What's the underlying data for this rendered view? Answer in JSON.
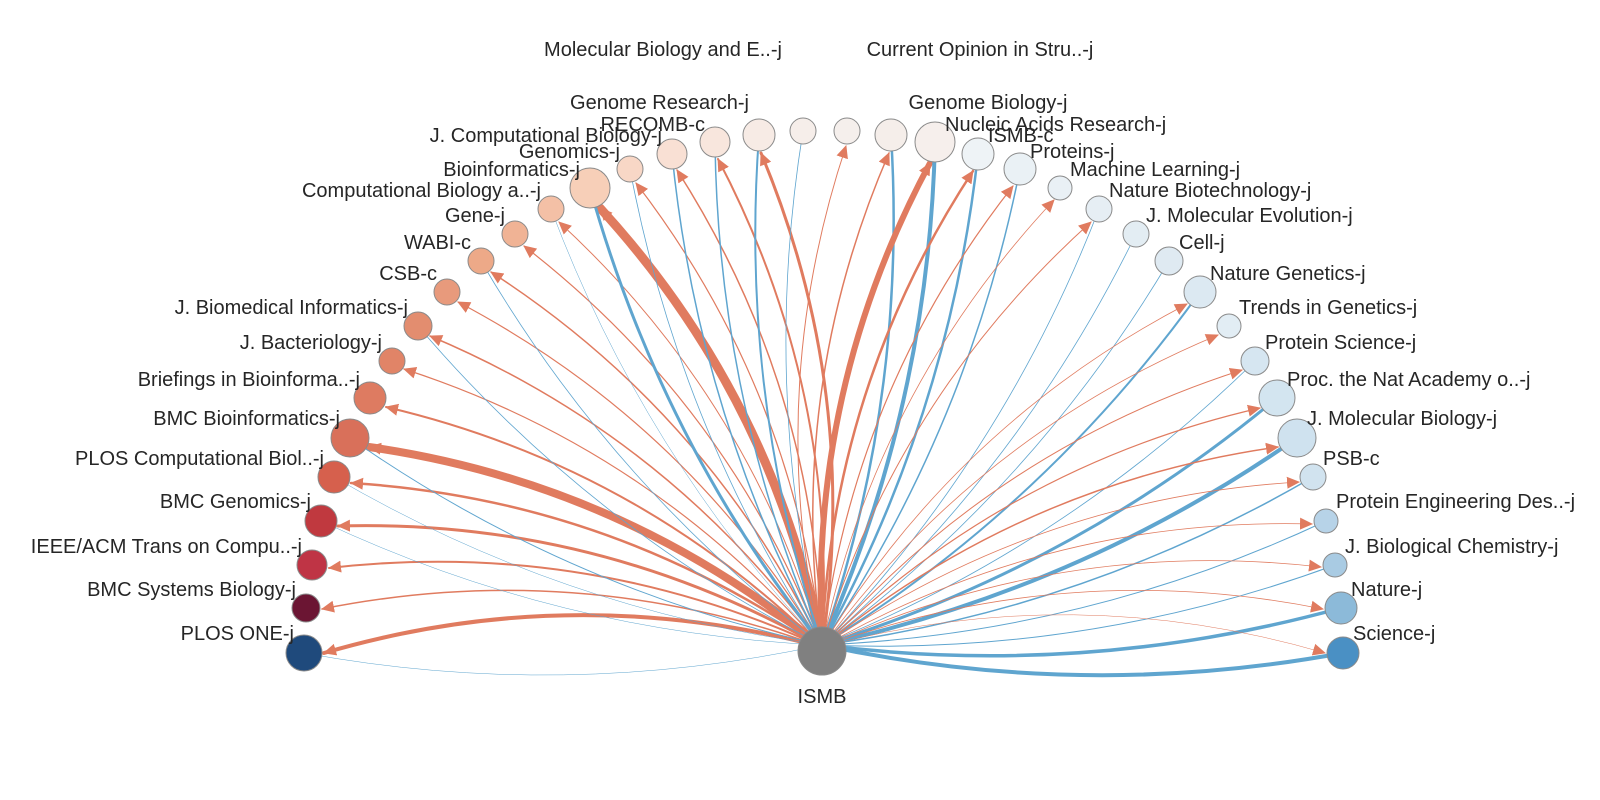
{
  "center": {
    "label": "ISMB",
    "color": "#808080"
  },
  "colors": {
    "cites_out": "#e07b5f",
    "cited_by": "#5fa5cf",
    "node_stroke": "#8a8a8a",
    "text": "#262626"
  },
  "venues": [
    {
      "label": "PLOS ONE-j",
      "color": "#1f4a7c",
      "out": 4,
      "in": 0.5
    },
    {
      "label": "BMC Systems Biology-j",
      "color": "#6b1533",
      "out": 1.5,
      "in": 0
    },
    {
      "label": "IEEE/ACM Trans on Compu..-j",
      "color": "#bf3445",
      "out": 2,
      "in": 0
    },
    {
      "label": "BMC Genomics-j",
      "color": "#c0393f",
      "out": 3,
      "in": 0.5
    },
    {
      "label": "PLOS Computational Biol..-j",
      "color": "#d6604d",
      "out": 2.5,
      "in": 0.5
    },
    {
      "label": "BMC Bioinformatics-j",
      "color": "#d9705a",
      "out": 8,
      "in": 1
    },
    {
      "label": "Briefings in Bioinforma..-j",
      "color": "#de7b61",
      "out": 2,
      "in": 0
    },
    {
      "label": "J. Bacteriology-j",
      "color": "#e18467",
      "out": 1.2,
      "in": 0
    },
    {
      "label": "J. Biomedical Informatics-j",
      "color": "#e38d6f",
      "out": 1.5,
      "in": 0.8
    },
    {
      "label": "CSB-c",
      "color": "#e89a7c",
      "out": 1.2,
      "in": 0
    },
    {
      "label": "WABI-c",
      "color": "#eda988",
      "out": 1.5,
      "in": 0.8
    },
    {
      "label": "Gene-j",
      "color": "#f0b395",
      "out": 1.2,
      "in": 0
    },
    {
      "label": "Computational Biology a..-j",
      "color": "#f4c0a6",
      "out": 1,
      "in": 0.5
    },
    {
      "label": "Bioinformatics-j",
      "color": "#f7cfb8",
      "out": 9,
      "in": 3
    },
    {
      "label": "Genomics-j",
      "color": "#f8d7c6",
      "out": 1.2,
      "in": 0.8
    },
    {
      "label": "J. Computational Biology-j",
      "color": "#f9e0d4",
      "out": 1.5,
      "in": 1.5
    },
    {
      "label": "RECOMB-c",
      "color": "#f8e6dd",
      "out": 2,
      "in": 1.5
    },
    {
      "label": "Genome Research-j",
      "color": "#f7ebe5",
      "out": 3,
      "in": 2
    },
    {
      "label": "Molecular Biology and E..-j",
      "color": "#f6eeea",
      "out": 0,
      "in": 0.8
    },
    {
      "label": "Current Opinion in Stru..-j",
      "color": "#f5efec",
      "out": 1,
      "in": 0
    },
    {
      "label": "Genome Biology-j",
      "color": "#f5eeea",
      "out": 1.5,
      "in": 2.5
    },
    {
      "label": "Nucleic Acids Research-j",
      "color": "#f6efec",
      "out": 6,
      "in": 4
    },
    {
      "label": "ISMB-c",
      "color": "#eef3f6",
      "out": 2.5,
      "in": 2.5
    },
    {
      "label": "Proteins-j",
      "color": "#eaf1f5",
      "out": 1.2,
      "in": 1.5
    },
    {
      "label": "Machine Learning-j",
      "color": "#e9f0f5",
      "out": 0.8,
      "in": 0
    },
    {
      "label": "Nature Biotechnology-j",
      "color": "#e6eef4",
      "out": 1,
      "in": 0.8
    },
    {
      "label": "J. Molecular Evolution-j",
      "color": "#e3edf3",
      "out": 0,
      "in": 0.8
    },
    {
      "label": "Cell-j",
      "color": "#dfeaf2",
      "out": 0,
      "in": 0.8
    },
    {
      "label": "Nature Genetics-j",
      "color": "#dce9f2",
      "out": 0.8,
      "in": 2
    },
    {
      "label": "Trends in Genetics-j",
      "color": "#e2edf4",
      "out": 0.8,
      "in": 0
    },
    {
      "label": "Protein Science-j",
      "color": "#d6e6f1",
      "out": 1,
      "in": 0.8
    },
    {
      "label": "Proc. the Nat Academy o..-j",
      "color": "#d3e5f0",
      "out": 1.2,
      "in": 3
    },
    {
      "label": "J. Molecular Biology-j",
      "color": "#cfe2ef",
      "out": 1.5,
      "in": 4
    },
    {
      "label": "PSB-c",
      "color": "#d1e3ef",
      "out": 0.8,
      "in": 1.5
    },
    {
      "label": "Protein Engineering Des..-j",
      "color": "#b7d3e8",
      "out": 0.8,
      "in": 1
    },
    {
      "label": "J. Biological Chemistry-j",
      "color": "#a9cbe3",
      "out": 0.8,
      "in": 1
    },
    {
      "label": "Nature-j",
      "color": "#8cbad9",
      "out": 0.8,
      "in": 3.5
    },
    {
      "label": "Science-j",
      "color": "#4a90c4",
      "out": 0.5,
      "in": 4
    }
  ]
}
